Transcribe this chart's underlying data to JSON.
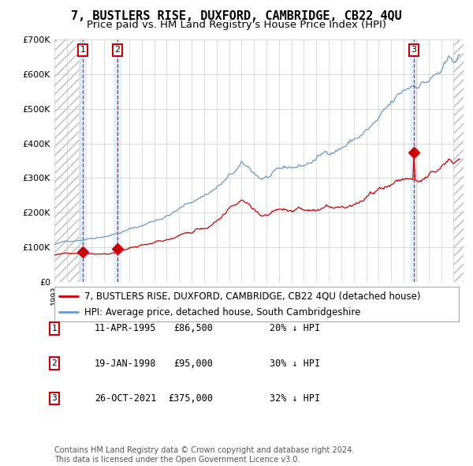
{
  "title": "7, BUSTLERS RISE, DUXFORD, CAMBRIDGE, CB22 4QU",
  "subtitle": "Price paid vs. HM Land Registry's House Price Index (HPI)",
  "ylim": [
    0,
    700000
  ],
  "yticks": [
    0,
    100000,
    200000,
    300000,
    400000,
    500000,
    600000,
    700000
  ],
  "ytick_labels": [
    "£0",
    "£100K",
    "£200K",
    "£300K",
    "£400K",
    "£500K",
    "£600K",
    "£700K"
  ],
  "xlim_start": 1993.0,
  "xlim_end": 2025.8,
  "transactions": [
    {
      "num": 1,
      "date": "11-APR-1995",
      "price": 86500,
      "year": 1995.28,
      "hpi_pct": "20% ↓ HPI"
    },
    {
      "num": 2,
      "date": "19-JAN-1998",
      "price": 95000,
      "year": 1998.05,
      "hpi_pct": "30% ↓ HPI"
    },
    {
      "num": 3,
      "date": "26-OCT-2021",
      "price": 375000,
      "year": 2021.82,
      "hpi_pct": "32% ↓ HPI"
    }
  ],
  "legend_house_label": "7, BUSTLERS RISE, DUXFORD, CAMBRIDGE, CB22 4QU (detached house)",
  "legend_hpi_label": "HPI: Average price, detached house, South Cambridgeshire",
  "footer": "Contains HM Land Registry data © Crown copyright and database right 2024.\nThis data is licensed under the Open Government Licence v3.0.",
  "house_color": "#cc0000",
  "hpi_color": "#6699cc",
  "transaction_bg_color": "#ddeeff",
  "grid_color": "#cccccc",
  "title_fontsize": 11,
  "subtitle_fontsize": 9.5,
  "tick_fontsize": 8,
  "legend_fontsize": 8.5,
  "footer_fontsize": 7
}
